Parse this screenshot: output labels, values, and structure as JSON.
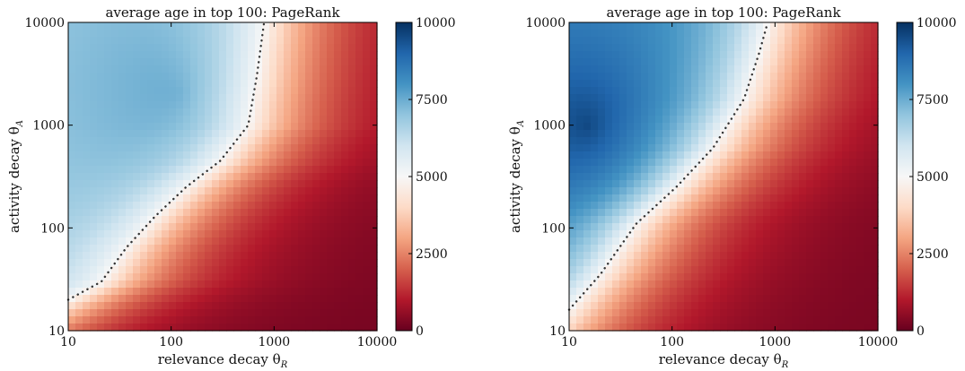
{
  "chart_data": [
    {
      "type": "heatmap",
      "title": "average age in top 100: PageRank",
      "xlabel": "relevance decay θ",
      "xlabel_sub": "R",
      "ylabel": "activity decay θ",
      "ylabel_sub": "A",
      "x_scale": "log",
      "y_scale": "log",
      "xlim": [
        10,
        10000
      ],
      "ylim": [
        10,
        10000
      ],
      "x_ticks": [
        "10",
        "100",
        "1000",
        "10000"
      ],
      "y_ticks": [
        "10",
        "100",
        "1000",
        "10000"
      ],
      "colorbar": {
        "min": 0,
        "max": 10000,
        "ticks": [
          "0",
          "2500",
          "5000",
          "7500",
          "10000"
        ],
        "colormap": "RdBu"
      },
      "contour_level": 5000,
      "contour": [
        {
          "x": 10,
          "y": 20
        },
        {
          "x": 21,
          "y": 30
        },
        {
          "x": 37,
          "y": 65
        },
        {
          "x": 70,
          "y": 130
        },
        {
          "x": 140,
          "y": 250
        },
        {
          "x": 300,
          "y": 450
        },
        {
          "x": 560,
          "y": 1000
        },
        {
          "x": 680,
          "y": 3000
        },
        {
          "x": 800,
          "y": 10000
        }
      ],
      "value_field": {
        "peak_value": 8000,
        "peak_location": {
          "x": 120,
          "y": 2000
        },
        "red_region_min": 200
      }
    },
    {
      "type": "heatmap",
      "title": "average age in top 100: PageRank",
      "xlabel": "relevance decay θ",
      "xlabel_sub": "R",
      "ylabel": "activity decay θ",
      "ylabel_sub": "A",
      "x_scale": "log",
      "y_scale": "log",
      "xlim": [
        10,
        10000
      ],
      "ylim": [
        10,
        10000
      ],
      "x_ticks": [
        "10",
        "100",
        "1000",
        "10000"
      ],
      "y_ticks": [
        "10",
        "100",
        "1000",
        "10000"
      ],
      "colorbar": {
        "min": 0,
        "max": 10000,
        "ticks": [
          "0",
          "2500",
          "5000",
          "7500",
          "10000"
        ],
        "colormap": "RdBu"
      },
      "contour_level": 5000,
      "contour": [
        {
          "x": 10,
          "y": 16
        },
        {
          "x": 20,
          "y": 35
        },
        {
          "x": 45,
          "y": 110
        },
        {
          "x": 110,
          "y": 250
        },
        {
          "x": 250,
          "y": 600
        },
        {
          "x": 500,
          "y": 1800
        },
        {
          "x": 700,
          "y": 5000
        },
        {
          "x": 850,
          "y": 10000
        }
      ],
      "value_field": {
        "peak_value": 9800,
        "peak_location": {
          "x": 15,
          "y": 1000
        },
        "red_region_min": 200
      }
    }
  ]
}
